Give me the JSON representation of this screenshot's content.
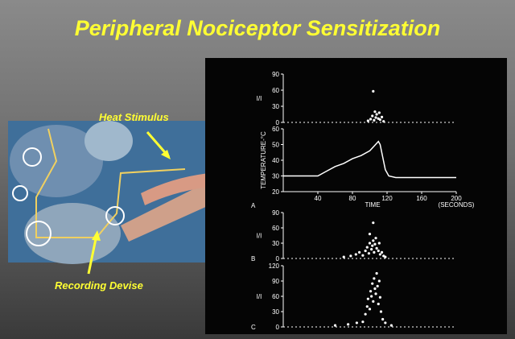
{
  "title": "Peripheral Nociceptor Sensitization",
  "labels": {
    "heat_stimulus": "Heat Stimulus",
    "recording_device": "Recording Devise"
  },
  "figure": {
    "xlim": [
      0,
      200
    ],
    "xticks": [
      40,
      80,
      120,
      160,
      200
    ],
    "xlabel": "TIME",
    "xunit": "(SECONDS)",
    "panels": [
      {
        "type": "scatter",
        "ylabel": "I/I",
        "ylim": [
          0,
          90
        ],
        "yticks": [
          0,
          30,
          60,
          90
        ],
        "x": [
          98,
          101,
          103,
          105,
          106,
          107,
          108,
          110,
          111,
          112,
          114,
          116,
          104
        ],
        "y": [
          3,
          6,
          12,
          4,
          20,
          9,
          15,
          7,
          18,
          5,
          10,
          2,
          58
        ]
      },
      {
        "type": "line",
        "ylabel": "TEMPERATURE-°C",
        "letter": "A",
        "ylim": [
          20,
          60
        ],
        "yticks": [
          20,
          30,
          40,
          50,
          60
        ],
        "x": [
          0,
          20,
          40,
          50,
          60,
          70,
          80,
          90,
          100,
          105,
          110,
          112,
          115,
          118,
          122,
          130,
          160,
          200
        ],
        "y": [
          30,
          30,
          30,
          33,
          36,
          38,
          41,
          43,
          46,
          49,
          52,
          50,
          42,
          34,
          30,
          29,
          29,
          29
        ]
      },
      {
        "type": "scatter",
        "ylabel": "I/I",
        "letter": "B",
        "ylim": [
          0,
          90
        ],
        "yticks": [
          0,
          30,
          60,
          90
        ],
        "x": [
          70,
          78,
          84,
          88,
          92,
          95,
          97,
          99,
          100,
          102,
          103,
          104,
          105,
          106,
          107,
          108,
          110,
          111,
          112,
          114,
          116,
          118,
          104,
          100
        ],
        "y": [
          3,
          5,
          8,
          12,
          6,
          15,
          22,
          10,
          30,
          18,
          25,
          35,
          12,
          28,
          40,
          20,
          15,
          30,
          8,
          12,
          5,
          3,
          70,
          48
        ]
      },
      {
        "type": "scatter",
        "ylabel": "I/I",
        "letter": "C",
        "ylim": [
          0,
          120
        ],
        "yticks": [
          0,
          30,
          60,
          90,
          120
        ],
        "x": [
          60,
          75,
          85,
          92,
          95,
          97,
          98,
          100,
          101,
          102,
          103,
          104,
          105,
          106,
          107,
          108,
          109,
          110,
          111,
          112,
          113,
          115,
          118,
          125
        ],
        "y": [
          3,
          5,
          8,
          10,
          25,
          40,
          55,
          35,
          70,
          60,
          85,
          50,
          95,
          75,
          65,
          105,
          80,
          45,
          90,
          58,
          30,
          15,
          8,
          3
        ]
      }
    ]
  }
}
